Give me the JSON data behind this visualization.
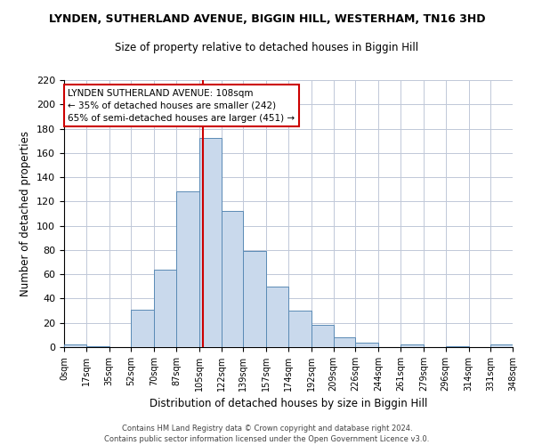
{
  "title_main": "LYNDEN, SUTHERLAND AVENUE, BIGGIN HILL, WESTERHAM, TN16 3HD",
  "title_sub": "Size of property relative to detached houses in Biggin Hill",
  "xlabel": "Distribution of detached houses by size in Biggin Hill",
  "ylabel": "Number of detached properties",
  "bin_edges": [
    0,
    17,
    35,
    52,
    70,
    87,
    105,
    122,
    139,
    157,
    174,
    192,
    209,
    226,
    244,
    261,
    279,
    296,
    314,
    331,
    348
  ],
  "counts": [
    2,
    1,
    0,
    31,
    64,
    128,
    172,
    112,
    79,
    50,
    30,
    18,
    8,
    4,
    0,
    2,
    0,
    1,
    0,
    2
  ],
  "bar_color": "#c9d9ec",
  "bar_edge_color": "#5a8ab5",
  "vline_x": 108,
  "vline_color": "#cc0000",
  "annotation_line1": "LYNDEN SUTHERLAND AVENUE: 108sqm",
  "annotation_line2": "← 35% of detached houses are smaller (242)",
  "annotation_line3": "65% of semi-detached houses are larger (451) →",
  "annotation_box_color": "#ffffff",
  "annotation_box_edge": "#cc0000",
  "ylim": [
    0,
    220
  ],
  "yticks": [
    0,
    20,
    40,
    60,
    80,
    100,
    120,
    140,
    160,
    180,
    200,
    220
  ],
  "tick_labels": [
    "0sqm",
    "17sqm",
    "35sqm",
    "52sqm",
    "70sqm",
    "87sqm",
    "105sqm",
    "122sqm",
    "139sqm",
    "157sqm",
    "174sqm",
    "192sqm",
    "209sqm",
    "226sqm",
    "244sqm",
    "261sqm",
    "279sqm",
    "296sqm",
    "314sqm",
    "331sqm",
    "348sqm"
  ],
  "footer_line1": "Contains HM Land Registry data © Crown copyright and database right 2024.",
  "footer_line2": "Contains public sector information licensed under the Open Government Licence v3.0.",
  "bg_color": "#ffffff",
  "grid_color": "#c0c8d8",
  "figwidth": 6.0,
  "figheight": 5.0,
  "dpi": 100
}
